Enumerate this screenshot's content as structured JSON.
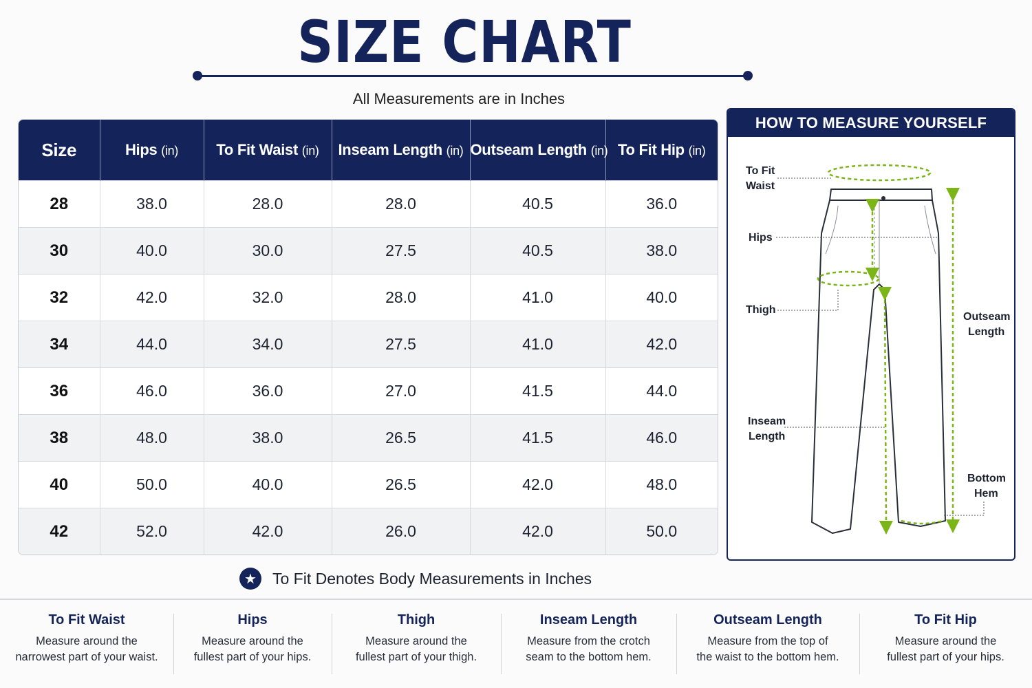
{
  "header": {
    "title": "SIZE CHART",
    "subtitle": "All Measurements are in Inches"
  },
  "table": {
    "columns": [
      {
        "label": "Size",
        "unit": ""
      },
      {
        "label": "Hips",
        "unit": "(in)"
      },
      {
        "label": "To Fit Waist",
        "unit": "(in)"
      },
      {
        "label": "Inseam Length",
        "unit": "(in)"
      },
      {
        "label": "Outseam Length",
        "unit": "(in)"
      },
      {
        "label": "To Fit Hip",
        "unit": "(in)"
      }
    ],
    "rows": [
      [
        "28",
        "38.0",
        "28.0",
        "28.0",
        "40.5",
        "36.0"
      ],
      [
        "30",
        "40.0",
        "30.0",
        "27.5",
        "40.5",
        "38.0"
      ],
      [
        "32",
        "42.0",
        "32.0",
        "28.0",
        "41.0",
        "40.0"
      ],
      [
        "34",
        "44.0",
        "34.0",
        "27.5",
        "41.0",
        "42.0"
      ],
      [
        "36",
        "46.0",
        "36.0",
        "27.0",
        "41.5",
        "44.0"
      ],
      [
        "38",
        "48.0",
        "38.0",
        "26.5",
        "41.5",
        "46.0"
      ],
      [
        "40",
        "50.0",
        "40.0",
        "26.5",
        "42.0",
        "48.0"
      ],
      [
        "42",
        "52.0",
        "42.0",
        "26.0",
        "42.0",
        "50.0"
      ]
    ]
  },
  "footnote": {
    "icon": "star-icon",
    "text": "To Fit Denotes Body Measurements in Inches"
  },
  "measure_panel": {
    "title": "HOW TO MEASURE YOURSELF",
    "labels": {
      "waist_1": "To Fit",
      "waist_2": "Waist",
      "hips": "Hips",
      "thigh": "Thigh",
      "inseam_1": "Inseam",
      "inseam_2": "Length",
      "outseam_1": "Outseam",
      "outseam_2": "Length",
      "hem_1": "Bottom",
      "hem_2": "Hem"
    }
  },
  "guide": [
    {
      "title": "To Fit Waist",
      "line1": "Measure around the",
      "line2": "narrowest part of your waist."
    },
    {
      "title": "Hips",
      "line1": "Measure around the",
      "line2": "fullest part of your hips."
    },
    {
      "title": "Thigh",
      "line1": "Measure around the",
      "line2": "fullest part of your thigh."
    },
    {
      "title": "Inseam Length",
      "line1": "Measure from the crotch",
      "line2": "seam to the bottom hem."
    },
    {
      "title": "Outseam Length",
      "line1": "Measure from the top of",
      "line2": "the waist to the bottom hem."
    },
    {
      "title": "To Fit Hip",
      "line1": "Measure around the",
      "line2": "fullest part of your hips."
    }
  ],
  "colors": {
    "navy": "#14245a",
    "accent_green": "#7cb518"
  }
}
